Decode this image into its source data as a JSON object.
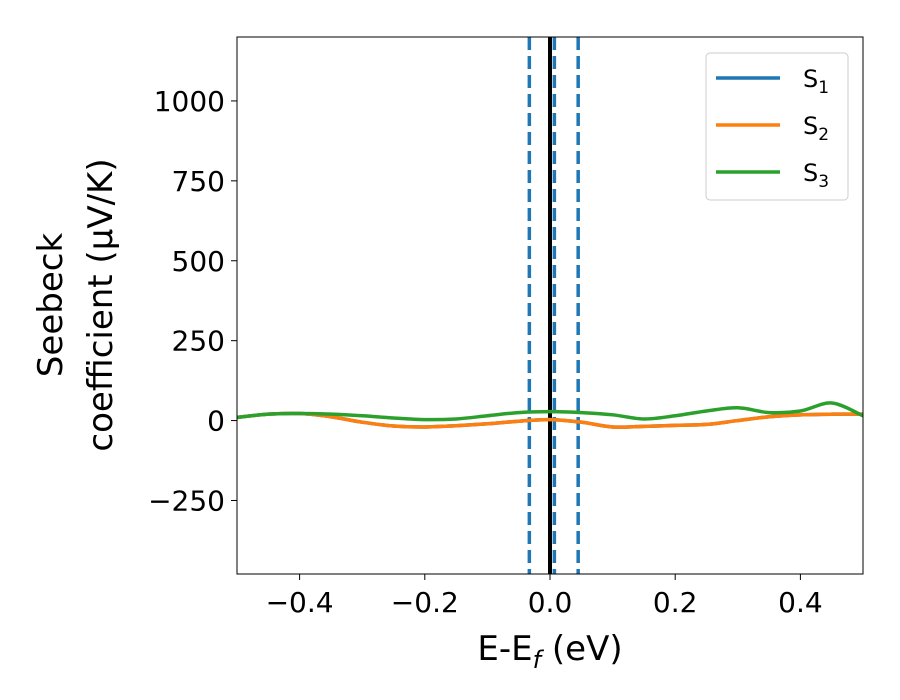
{
  "chart_data": {
    "type": "line",
    "title": "",
    "xlabel": {
      "main": "E-E",
      "sub": "f",
      "tail": " (eV)"
    },
    "ylabel": {
      "line1": "Seebeck",
      "line2": "coefficient  (μV/K)"
    },
    "xlim": [
      -0.5,
      0.5
    ],
    "ylim": [
      -480,
      1200
    ],
    "x_ticks": [
      -0.4,
      -0.2,
      0.0,
      0.2,
      0.4
    ],
    "x_tick_labels": [
      "−0.4",
      "−0.2",
      "0.0",
      "0.2",
      "0.4"
    ],
    "y_ticks": [
      -250,
      0,
      250,
      500,
      750,
      1000
    ],
    "y_tick_labels": [
      "−250",
      "0",
      "250",
      "500",
      "750",
      "1000"
    ],
    "grid": false,
    "legend_position": "top-right",
    "series": [
      {
        "name": "S",
        "subscript": "1",
        "color": "#1f77b4",
        "x": [
          -0.5,
          -0.45,
          -0.4,
          -0.35,
          -0.3,
          -0.25,
          -0.2,
          -0.15,
          -0.1,
          -0.05,
          0.0,
          0.05,
          0.1,
          0.15,
          0.2,
          0.25,
          0.3,
          0.35,
          0.4,
          0.45,
          0.5
        ],
        "values": [
          10,
          20,
          22,
          12,
          -5,
          -17,
          -20,
          -16,
          -10,
          -2,
          3,
          -5,
          -20,
          -18,
          -15,
          -12,
          0,
          12,
          18,
          20,
          20
        ]
      },
      {
        "name": "S",
        "subscript": "2",
        "color": "#ff7f0e",
        "x": [
          -0.5,
          -0.45,
          -0.4,
          -0.35,
          -0.3,
          -0.25,
          -0.2,
          -0.15,
          -0.1,
          -0.05,
          0.0,
          0.05,
          0.1,
          0.15,
          0.2,
          0.25,
          0.3,
          0.35,
          0.4,
          0.45,
          0.5
        ],
        "values": [
          10,
          20,
          22,
          12,
          -5,
          -17,
          -20,
          -16,
          -10,
          -2,
          3,
          -5,
          -20,
          -18,
          -15,
          -12,
          0,
          12,
          18,
          20,
          20
        ]
      },
      {
        "name": "S",
        "subscript": "3",
        "color": "#2ca02c",
        "x": [
          -0.5,
          -0.45,
          -0.4,
          -0.35,
          -0.3,
          -0.25,
          -0.2,
          -0.15,
          -0.1,
          -0.05,
          0.0,
          0.05,
          0.1,
          0.15,
          0.2,
          0.25,
          0.3,
          0.35,
          0.4,
          0.45,
          0.5
        ],
        "values": [
          10,
          20,
          22,
          20,
          15,
          8,
          3,
          5,
          15,
          25,
          28,
          25,
          18,
          5,
          15,
          30,
          40,
          25,
          30,
          55,
          15
        ]
      }
    ],
    "vertical_lines": [
      {
        "x": -0.033,
        "color": "#1f77b4",
        "style": "dashed"
      },
      {
        "x": 0.0,
        "color": "#000000",
        "style": "solid"
      },
      {
        "x": 0.007,
        "color": "#1f77b4",
        "style": "dashed"
      },
      {
        "x": 0.045,
        "color": "#1f77b4",
        "style": "dashed"
      }
    ]
  }
}
